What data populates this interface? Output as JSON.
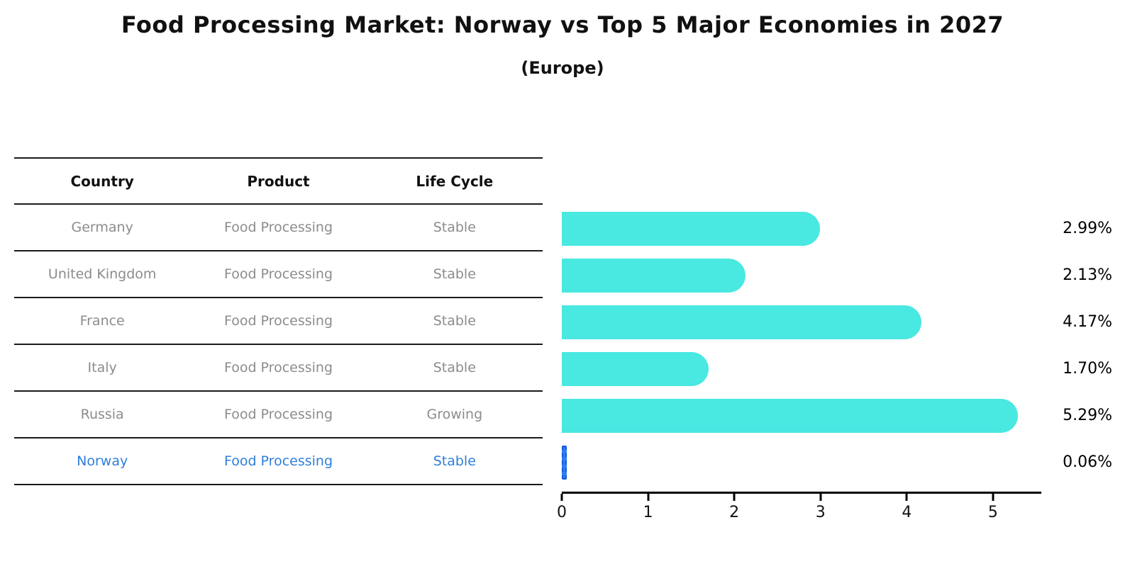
{
  "title": "Food Processing Market: Norway vs Top 5 Major Economies in 2027",
  "subtitle": "(Europe)",
  "colors": {
    "bar": "#49e8e1",
    "highlight_bar": "#2e7ef2",
    "highlight_bar_border": "#1256d8",
    "table_text": "#8c8c8c",
    "highlight_text": "#2e7fd9",
    "rule_line": "#1a1a1a",
    "axis": "#000000"
  },
  "table": {
    "columns": [
      "Country",
      "Product",
      "Life Cycle"
    ],
    "rows": [
      {
        "country": "Germany",
        "product": "Food Processing",
        "life_cycle": "Stable",
        "highlight": false
      },
      {
        "country": "United Kingdom",
        "product": "Food Processing",
        "life_cycle": "Stable",
        "highlight": false
      },
      {
        "country": "France",
        "product": "Food Processing",
        "life_cycle": "Stable",
        "highlight": false
      },
      {
        "country": "Italy",
        "product": "Food Processing",
        "life_cycle": "Stable",
        "highlight": false
      },
      {
        "country": "Russia",
        "product": "Food Processing",
        "life_cycle": "Growing",
        "highlight": false
      },
      {
        "country": "Norway",
        "product": "Food Processing",
        "life_cycle": "Stable",
        "highlight": true
      }
    ]
  },
  "chart_data": {
    "type": "bar",
    "orientation": "horizontal",
    "title": "Food Processing Market: Norway vs Top 5 Major Economies in 2027 (Europe)",
    "categories": [
      "Germany",
      "United Kingdom",
      "France",
      "Italy",
      "Russia",
      "Norway"
    ],
    "values": [
      2.99,
      2.13,
      4.17,
      1.7,
      5.29,
      0.06
    ],
    "value_labels": [
      "2.99%",
      "2.13%",
      "4.17%",
      "1.70%",
      "5.29%",
      "0.06%"
    ],
    "x_ticks": [
      0,
      1,
      2,
      3,
      4,
      5
    ],
    "xlim": [
      0,
      5.56
    ],
    "xlabel": "",
    "ylabel": "",
    "grid": false,
    "legend": false,
    "highlight_index": 5
  }
}
